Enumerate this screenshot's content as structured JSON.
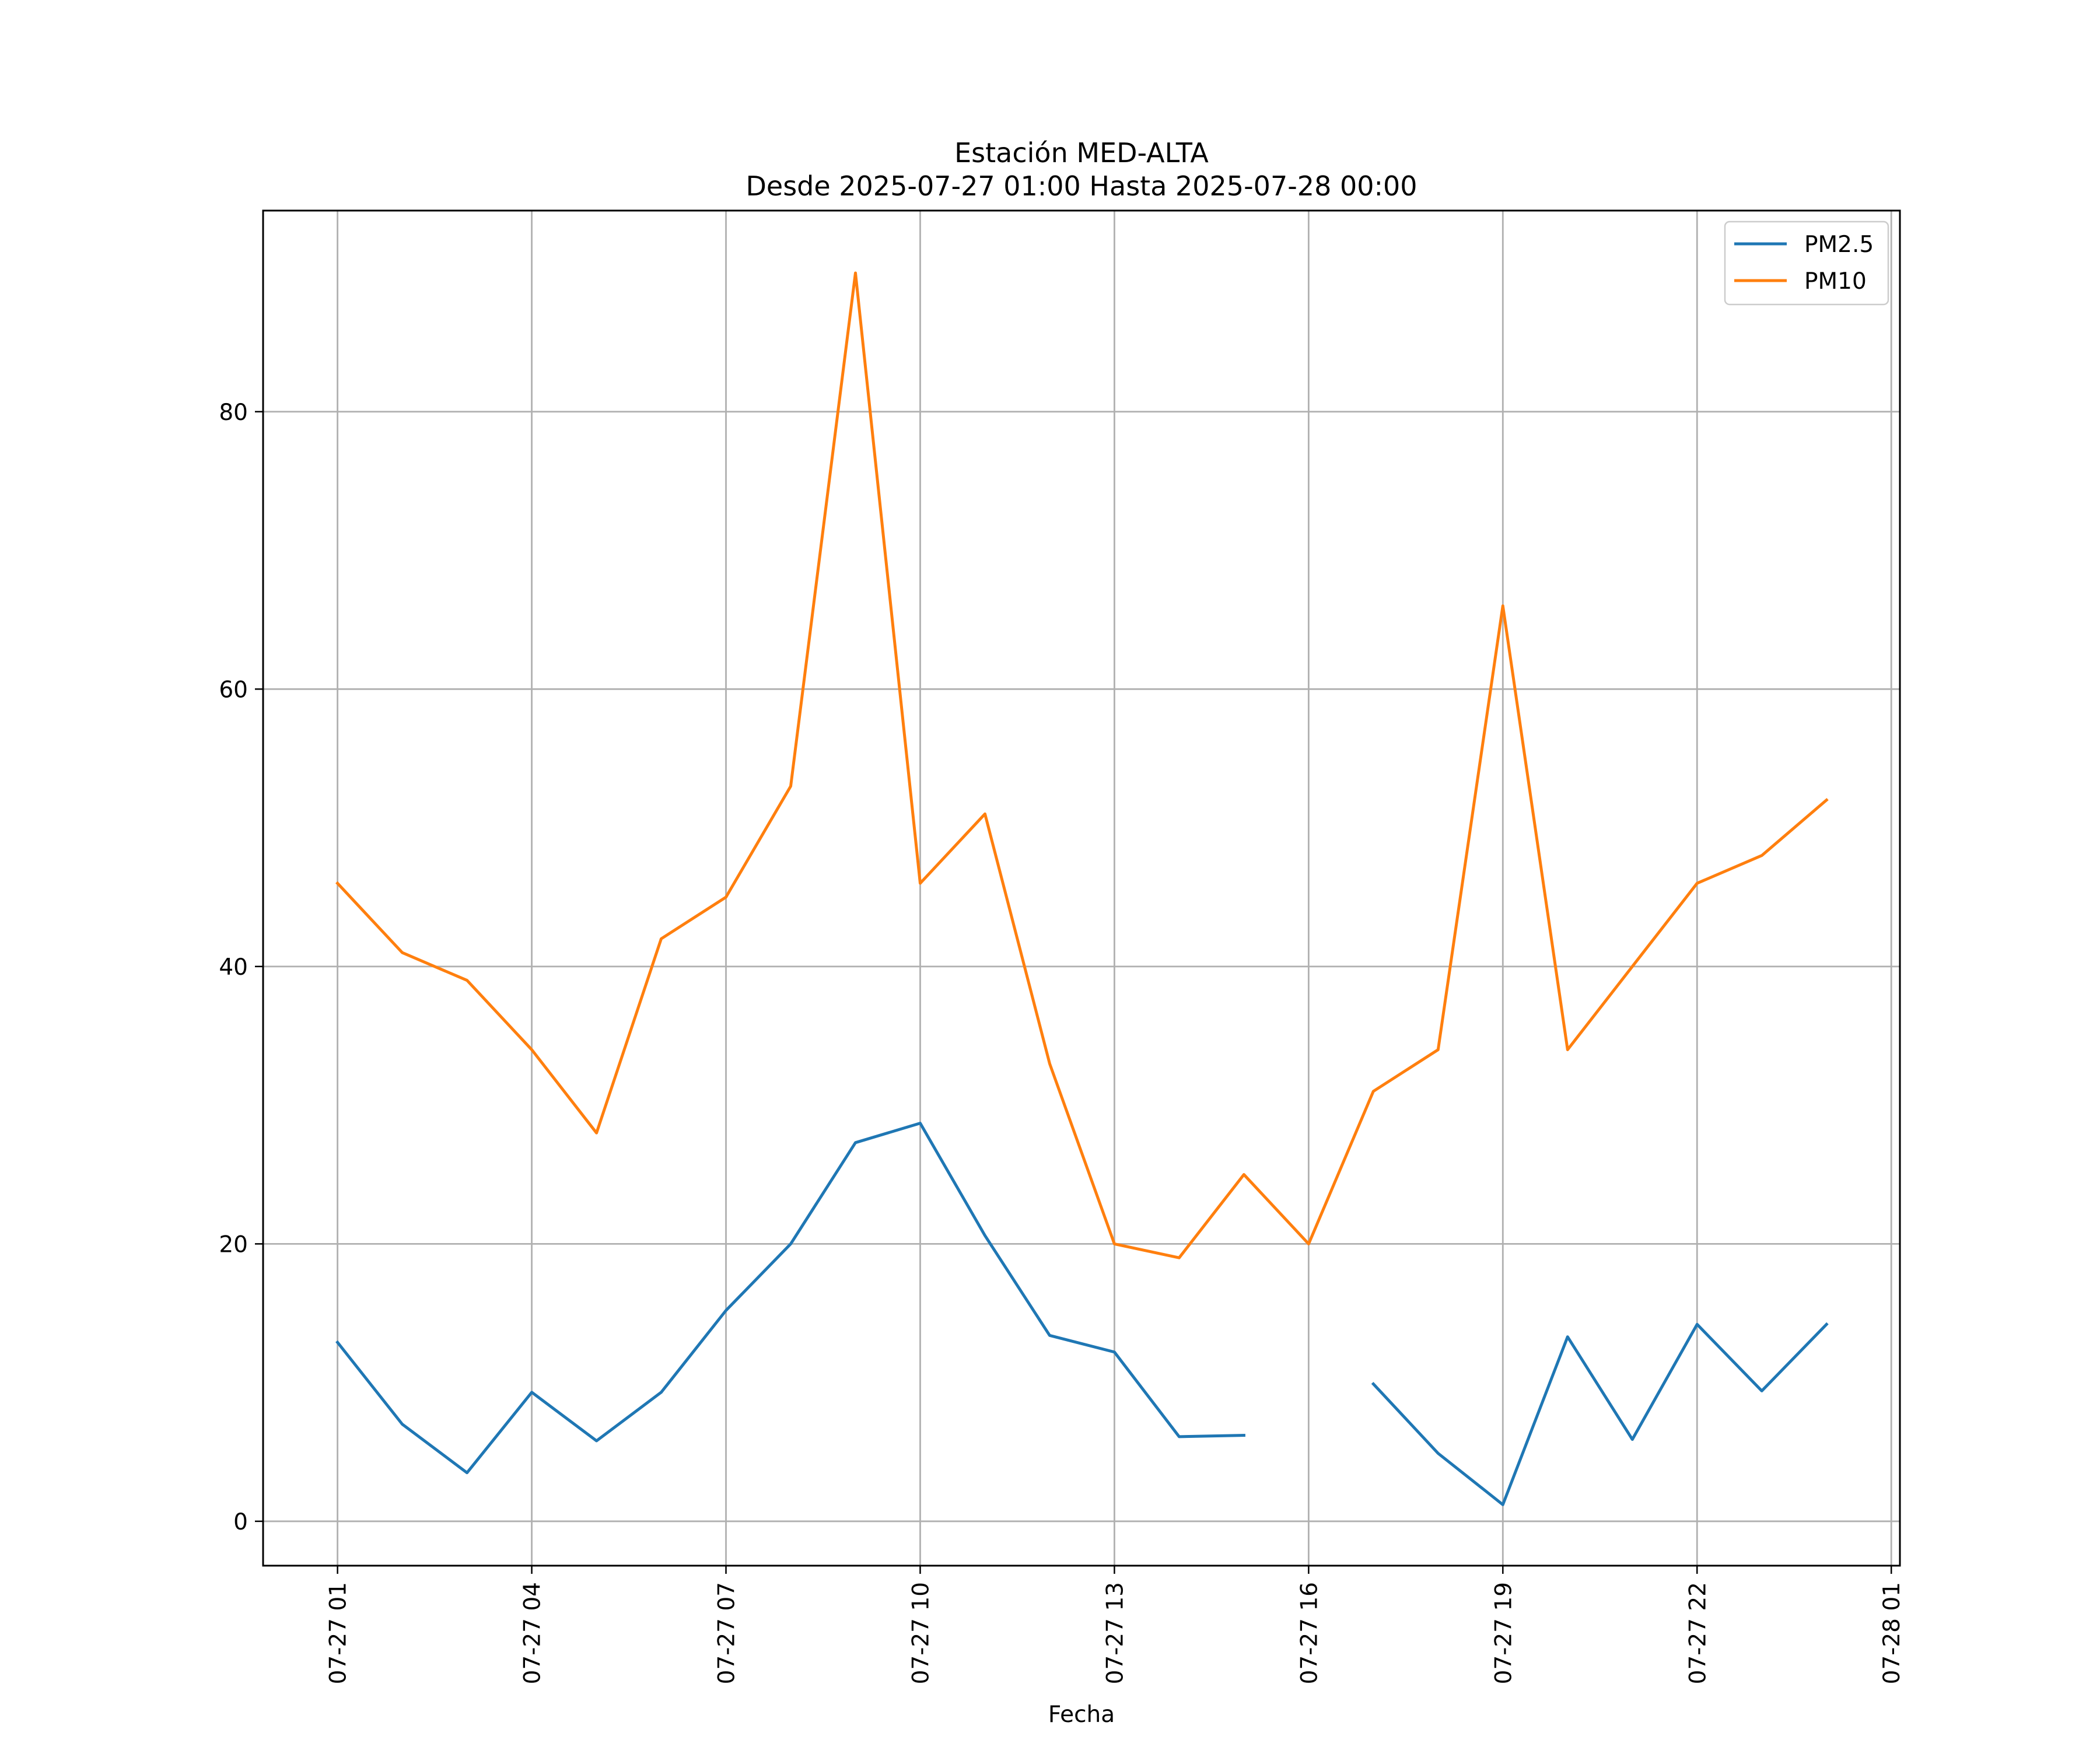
{
  "chart_data": {
    "type": "line",
    "title": "Estación MED-ALTA",
    "subtitle": "Desde 2025-07-27 01:00 Hasta 2025-07-28 00:00",
    "xlabel": "Fecha",
    "ylabel": "",
    "x": [
      "2025-07-27 01:00",
      "2025-07-27 02:00",
      "2025-07-27 03:00",
      "2025-07-27 04:00",
      "2025-07-27 05:00",
      "2025-07-27 06:00",
      "2025-07-27 07:00",
      "2025-07-27 08:00",
      "2025-07-27 09:00",
      "2025-07-27 10:00",
      "2025-07-27 11:00",
      "2025-07-27 12:00",
      "2025-07-27 13:00",
      "2025-07-27 14:00",
      "2025-07-27 15:00",
      "2025-07-27 16:00",
      "2025-07-27 17:00",
      "2025-07-27 18:00",
      "2025-07-27 19:00",
      "2025-07-27 20:00",
      "2025-07-27 21:00",
      "2025-07-27 22:00",
      "2025-07-27 23:00",
      "2025-07-28 00:00"
    ],
    "series": [
      {
        "name": "PM2.5",
        "color": "#1f77b4",
        "values": [
          12.9,
          7.0,
          3.5,
          9.3,
          5.8,
          9.3,
          15.2,
          20.0,
          27.3,
          28.7,
          20.6,
          13.4,
          12.2,
          6.1,
          6.2,
          null,
          9.9,
          4.9,
          1.2,
          13.3,
          5.9,
          14.2,
          9.4,
          14.2
        ]
      },
      {
        "name": "PM10",
        "color": "#ff7f0e",
        "values": [
          46,
          41,
          39,
          34,
          28,
          42,
          45,
          53,
          90,
          46,
          51,
          33,
          20,
          19,
          25,
          20,
          31,
          34,
          66,
          34,
          40,
          46,
          48,
          52
        ]
      }
    ],
    "x_ticks": [
      "07-27 01",
      "07-27 04",
      "07-27 07",
      "07-27 10",
      "07-27 13",
      "07-27 16",
      "07-27 19",
      "07-27 22",
      "07-28 01"
    ],
    "y_ticks": [
      "0",
      "20",
      "40",
      "60",
      "80"
    ],
    "ylim": [
      -3.2,
      94.5
    ],
    "xlim": [
      "2025-07-26 23:51",
      "2025-07-28 01:08"
    ],
    "grid": true,
    "legend_position": "top-right"
  }
}
